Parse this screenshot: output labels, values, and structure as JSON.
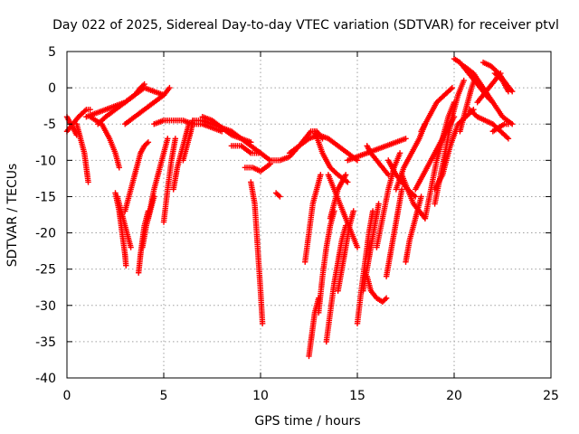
{
  "chart_data": {
    "type": "scatter",
    "title": "Day 022 of 2025, Sidereal Day-to-day VTEC variation (SDTVAR) for receiver ptvl",
    "xlabel": "GPS time / hours",
    "ylabel": "SDTVAR / TECUs",
    "xlim": [
      0,
      25
    ],
    "ylim": [
      -40,
      5
    ],
    "x_ticks": [
      "0",
      "5",
      "10",
      "15",
      "20",
      "25"
    ],
    "y_ticks": [
      "5",
      "0",
      "-5",
      "-10",
      "-15",
      "-20",
      "-25",
      "-30",
      "-35",
      "-40"
    ],
    "grid": true,
    "marker": "+",
    "color": "#ff0000",
    "series": [
      {
        "x": [
          0.0,
          0.3,
          0.6,
          0.8,
          1.0,
          1.2
        ],
        "y": [
          -6,
          -5,
          -4,
          -3.5,
          -3,
          -3
        ]
      },
      {
        "x": [
          0.0,
          0.2,
          0.5
        ],
        "y": [
          -4,
          -5,
          -6.5
        ]
      },
      {
        "x": [
          0.5,
          0.7,
          0.9,
          1.0,
          1.1
        ],
        "y": [
          -5,
          -7,
          -9,
          -11,
          -13
        ]
      },
      {
        "x": [
          1.0,
          1.5,
          2.0,
          2.5,
          3.0,
          3.5,
          3.8,
          4.0
        ],
        "y": [
          -4,
          -3.5,
          -3,
          -2.5,
          -2,
          -1,
          0,
          0.5
        ]
      },
      {
        "x": [
          1.2,
          1.8,
          2.2,
          2.5,
          2.7
        ],
        "y": [
          -4,
          -5,
          -7,
          -9,
          -11
        ]
      },
      {
        "x": [
          1.6,
          2.0,
          2.5,
          3.0,
          3.5,
          4.0,
          4.5,
          5.0
        ],
        "y": [
          -5,
          -4,
          -3,
          -2,
          -1,
          0,
          -0.5,
          -1
        ]
      },
      {
        "x": [
          2.5,
          2.7,
          2.8,
          2.9,
          3.0,
          3.05
        ],
        "y": [
          -14.5,
          -17,
          -19,
          -21,
          -23,
          -24.5
        ]
      },
      {
        "x": [
          2.6,
          2.8,
          3.0,
          3.2,
          3.3
        ],
        "y": [
          -15,
          -17,
          -19,
          -21,
          -22
        ]
      },
      {
        "x": [
          3.0,
          3.3,
          3.6,
          3.8,
          4.0,
          4.2
        ],
        "y": [
          -17,
          -14,
          -11,
          -9,
          -8,
          -7.5
        ]
      },
      {
        "x": [
          3.7,
          3.8,
          3.9,
          4.0,
          4.2
        ],
        "y": [
          -25.5,
          -23,
          -21,
          -19,
          -17
        ]
      },
      {
        "x": [
          3.9,
          4.1,
          4.3,
          4.5
        ],
        "y": [
          -22,
          -19,
          -17,
          -15
        ]
      },
      {
        "x": [
          3.0,
          3.5,
          4.0,
          4.5,
          5.0,
          5.3
        ],
        "y": [
          -5,
          -4,
          -3,
          -2,
          -1,
          0
        ]
      },
      {
        "x": [
          4.2,
          4.5,
          4.8,
          5.0,
          5.2
        ],
        "y": [
          -18,
          -14,
          -11,
          -9,
          -7
        ]
      },
      {
        "x": [
          4.5,
          5.0,
          5.5,
          6.0,
          6.5,
          7.0,
          7.5,
          8.0
        ],
        "y": [
          -5,
          -4.5,
          -4.5,
          -4.5,
          -5,
          -5,
          -5.5,
          -6
        ]
      },
      {
        "x": [
          5.0,
          5.2,
          5.4,
          5.6
        ],
        "y": [
          -18.5,
          -14,
          -10,
          -7
        ]
      },
      {
        "x": [
          5.5,
          5.7,
          5.9,
          6.1,
          6.3
        ],
        "y": [
          -14,
          -11,
          -9,
          -7,
          -5
        ]
      },
      {
        "x": [
          6.0,
          6.2,
          6.4,
          6.5
        ],
        "y": [
          -10,
          -8,
          -6,
          -4.5
        ]
      },
      {
        "x": [
          6.5,
          7.0,
          7.5,
          8.0,
          8.5,
          9.0,
          9.5,
          10.0
        ],
        "y": [
          -4.5,
          -4.5,
          -5,
          -5.5,
          -6.5,
          -7,
          -8,
          -9
        ]
      },
      {
        "x": [
          7.0,
          7.5,
          8.0,
          8.5,
          9.0,
          9.5
        ],
        "y": [
          -4,
          -4.5,
          -5.5,
          -6,
          -7,
          -7.5
        ]
      },
      {
        "x": [
          8.5,
          9.0,
          9.5,
          10.0,
          10.5,
          11.0,
          11.5,
          12.0
        ],
        "y": [
          -8,
          -8,
          -9,
          -9,
          -10,
          -10,
          -9.5,
          -8
        ]
      },
      {
        "x": [
          9.2,
          9.6,
          10.0,
          10.5
        ],
        "y": [
          -11,
          -11,
          -11.5,
          -10.5
        ]
      },
      {
        "x": [
          9.5,
          9.7,
          9.8,
          9.9,
          10.0,
          10.1
        ],
        "y": [
          -13,
          -16,
          -20,
          -24,
          -28,
          -32.5
        ]
      },
      {
        "x": [
          10.8,
          11.0
        ],
        "y": [
          -14.5,
          -15
        ]
      },
      {
        "x": [
          11.5,
          12.0,
          12.5,
          13.0,
          13.5,
          14.0,
          14.5,
          15.0
        ],
        "y": [
          -9,
          -8,
          -7,
          -6.5,
          -7,
          -8,
          -9,
          -10
        ]
      },
      {
        "x": [
          12.0,
          12.3,
          12.6,
          12.9,
          13.2
        ],
        "y": [
          -8,
          -7,
          -6,
          -6,
          -7
        ]
      },
      {
        "x": [
          12.3,
          12.5,
          12.7,
          12.9,
          13.1
        ],
        "y": [
          -24,
          -20,
          -16,
          -14,
          -12
        ]
      },
      {
        "x": [
          12.5,
          12.6,
          12.7,
          12.8,
          12.9,
          13.0
        ],
        "y": [
          -37,
          -35,
          -33,
          -31,
          -30,
          -29
        ]
      },
      {
        "x": [
          12.8,
          13.2,
          13.6,
          14.0,
          14.5
        ],
        "y": [
          -6,
          -9,
          -11,
          -12,
          -13
        ]
      },
      {
        "x": [
          13.0,
          13.2,
          13.4,
          13.6,
          13.8
        ],
        "y": [
          -31,
          -26,
          -22,
          -19,
          -17
        ]
      },
      {
        "x": [
          13.4,
          13.6,
          13.8,
          14.0,
          14.2,
          14.4
        ],
        "y": [
          -35,
          -31,
          -27,
          -24,
          -21,
          -19
        ]
      },
      {
        "x": [
          13.5,
          13.8,
          14.1,
          14.4,
          14.7,
          15.0
        ],
        "y": [
          -12,
          -14,
          -16,
          -18,
          -20,
          -22
        ]
      },
      {
        "x": [
          13.6,
          13.8,
          14.0,
          14.2,
          14.4
        ],
        "y": [
          -18,
          -16,
          -14,
          -13,
          -12
        ]
      },
      {
        "x": [
          14.0,
          14.2,
          14.4,
          14.6,
          14.8
        ],
        "y": [
          -28,
          -25,
          -22,
          -19,
          -17
        ]
      },
      {
        "x": [
          14.5,
          15.0,
          15.5,
          16.0,
          16.5,
          17.0,
          17.5
        ],
        "y": [
          -10,
          -9.5,
          -9,
          -8.5,
          -8,
          -7.5,
          -7
        ]
      },
      {
        "x": [
          15.0,
          15.2,
          15.4,
          15.6,
          15.8
        ],
        "y": [
          -32.5,
          -28,
          -24,
          -20,
          -17
        ]
      },
      {
        "x": [
          15.3,
          15.5,
          15.7,
          15.9,
          16.1
        ],
        "y": [
          -28,
          -25,
          -22,
          -19,
          -16
        ]
      },
      {
        "x": [
          15.5,
          15.7,
          16.0,
          16.3,
          16.6
        ],
        "y": [
          -8,
          -9,
          -10,
          -11,
          -12
        ]
      },
      {
        "x": [
          15.5,
          15.7,
          16.0,
          16.3,
          16.5
        ],
        "y": [
          -26,
          -28,
          -29,
          -29.5,
          -29
        ]
      },
      {
        "x": [
          16.0,
          16.3,
          16.6,
          16.9,
          17.2
        ],
        "y": [
          -22,
          -18,
          -14,
          -11,
          -9
        ]
      },
      {
        "x": [
          16.5,
          16.7,
          16.9,
          17.1,
          17.3
        ],
        "y": [
          -26,
          -23,
          -20,
          -17,
          -14
        ]
      },
      {
        "x": [
          16.6,
          17.0,
          17.3,
          17.6,
          18.0
        ],
        "y": [
          -10,
          -12,
          -13,
          -14,
          -15
        ]
      },
      {
        "x": [
          17.0,
          17.4,
          17.8,
          18.2,
          18.5
        ],
        "y": [
          -14,
          -11,
          -9,
          -7,
          -5
        ]
      },
      {
        "x": [
          17.5,
          17.7,
          17.9,
          18.1,
          18.3
        ],
        "y": [
          -24,
          -21,
          -19,
          -17,
          -15
        ]
      },
      {
        "x": [
          17.3,
          17.6,
          17.9,
          18.2,
          18.5
        ],
        "y": [
          -12,
          -14,
          -16,
          -17,
          -18
        ]
      },
      {
        "x": [
          18.0,
          18.4,
          18.8,
          19.2,
          19.6,
          20.0
        ],
        "y": [
          -14,
          -12,
          -10,
          -8,
          -6,
          -4
        ]
      },
      {
        "x": [
          18.5,
          18.8,
          19.1,
          19.4,
          19.7,
          20.0
        ],
        "y": [
          -18,
          -14,
          -10,
          -7,
          -4,
          -2
        ]
      },
      {
        "x": [
          18.3,
          18.7,
          19.1,
          19.5,
          19.9
        ],
        "y": [
          -6,
          -4,
          -2,
          -1,
          0
        ]
      },
      {
        "x": [
          19.0,
          19.3,
          19.6,
          19.9,
          20.2,
          20.5
        ],
        "y": [
          -16,
          -12,
          -8,
          -4,
          -1,
          1
        ]
      },
      {
        "x": [
          19.0,
          19.4,
          19.8,
          20.2,
          20.6,
          21.0
        ],
        "y": [
          -14,
          -12,
          -8,
          -5,
          -4,
          -3
        ]
      },
      {
        "x": [
          20.0,
          20.3,
          20.6,
          20.9,
          21.2,
          21.5,
          21.8,
          22.0
        ],
        "y": [
          4,
          3.5,
          2.5,
          1.5,
          0.5,
          -0.5,
          -1.5,
          -2
        ]
      },
      {
        "x": [
          20.3,
          20.5,
          20.7,
          20.9,
          21.1
        ],
        "y": [
          -6,
          -4,
          -2,
          0,
          1.5
        ]
      },
      {
        "x": [
          20.5,
          21.0,
          21.5,
          22.0,
          22.5,
          23.0
        ],
        "y": [
          3,
          2,
          0,
          -2,
          -4,
          -5
        ]
      },
      {
        "x": [
          20.8,
          21.2,
          21.6,
          22.0,
          22.4,
          22.8
        ],
        "y": [
          -3,
          -4,
          -4.5,
          -5,
          -6,
          -7
        ]
      },
      {
        "x": [
          21.2,
          21.5,
          21.8,
          22.1,
          22.4
        ],
        "y": [
          -2,
          -1,
          0,
          1,
          2
        ]
      },
      {
        "x": [
          21.5,
          21.9,
          22.3,
          22.7,
          23.0
        ],
        "y": [
          3.5,
          3,
          2,
          0.5,
          -0.5
        ]
      },
      {
        "x": [
          22.0,
          22.3,
          22.6,
          22.8
        ],
        "y": [
          -6,
          -5.5,
          -5,
          -5
        ]
      },
      {
        "x": [
          22.1,
          22.5,
          22.8
        ],
        "y": [
          2,
          1,
          -0.5
        ]
      }
    ]
  }
}
